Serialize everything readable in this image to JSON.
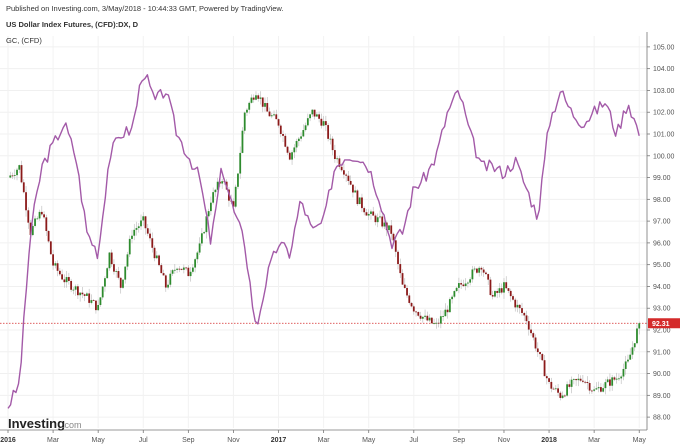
{
  "header": {
    "published": "Published on Investing.com, 3/May/2018 - 10:44:33 GMT, Powered by TradingView.",
    "series1": "US Dollar Index Futures, (CFD):DX, D",
    "series2": "GC, (CFD)"
  },
  "logo": {
    "name": "Investing",
    "suffix": ".com"
  },
  "colors": {
    "up": "#2e8b2e",
    "down": "#8b1a1a",
    "gold": "#a35aa8",
    "priceLine": "#d42a2a",
    "priceBg": "#d42a2a"
  },
  "chart_data": {
    "type": "line",
    "title": "US Dollar Index Futures, (CFD):DX, D",
    "xlabel": "",
    "ylabel": "",
    "ylim": [
      87.5,
      105.5
    ],
    "xlim": [
      0,
      28.3
    ],
    "x_ticks": [
      {
        "label": "2016",
        "pos": 0,
        "bold": true
      },
      {
        "label": "Mar",
        "pos": 2,
        "bold": false
      },
      {
        "label": "May",
        "pos": 4,
        "bold": false
      },
      {
        "label": "Jul",
        "pos": 6,
        "bold": false
      },
      {
        "label": "Sep",
        "pos": 8,
        "bold": false
      },
      {
        "label": "Nov",
        "pos": 10,
        "bold": false
      },
      {
        "label": "2017",
        "pos": 12,
        "bold": true
      },
      {
        "label": "Mar",
        "pos": 14,
        "bold": false
      },
      {
        "label": "May",
        "pos": 16,
        "bold": false
      },
      {
        "label": "Jul",
        "pos": 18,
        "bold": false
      },
      {
        "label": "Sep",
        "pos": 20,
        "bold": false
      },
      {
        "label": "Nov",
        "pos": 22,
        "bold": false
      },
      {
        "label": "2018",
        "pos": 24,
        "bold": true
      },
      {
        "label": "Mar",
        "pos": 26,
        "bold": false
      },
      {
        "label": "May",
        "pos": 28,
        "bold": false
      }
    ],
    "y_ticks": [
      "88.00",
      "89.00",
      "90.00",
      "91.00",
      "92.00",
      "93.00",
      "94.00",
      "95.00",
      "96.00",
      "97.00",
      "98.00",
      "99.00",
      "100.00",
      "101.00",
      "102.00",
      "103.00",
      "104.00",
      "105.00"
    ],
    "last_price": 92.31,
    "last_price_label": "92.31",
    "series": [
      {
        "name": "US Dollar Index Futures, (CFD):DX, D",
        "style": "candlestick",
        "x": [
          0,
          0.5,
          1,
          1.5,
          2,
          2.5,
          3,
          3.5,
          4,
          4.5,
          5,
          5.5,
          6,
          6.5,
          7,
          7.5,
          8,
          8.5,
          9,
          9.5,
          10,
          10.5,
          11,
          11.5,
          12,
          12.5,
          13,
          13.5,
          14,
          14.5,
          15,
          15.5,
          16,
          16.5,
          17,
          17.5,
          18,
          18.5,
          19,
          19.5,
          20,
          20.5,
          21,
          21.5,
          22,
          22.5,
          23,
          23.5,
          24,
          24.5,
          25,
          25.5,
          26,
          26.5,
          27,
          27.5,
          28
        ],
        "values": [
          99.0,
          99.5,
          96.5,
          97.5,
          95.0,
          94.3,
          93.9,
          93.5,
          93.0,
          95.5,
          94.0,
          96.5,
          97.0,
          95.5,
          94.0,
          95.0,
          94.6,
          95.8,
          98.0,
          99.0,
          97.5,
          102.0,
          103.0,
          102.0,
          101.5,
          100.0,
          101.0,
          102.0,
          101.5,
          100.0,
          99.2,
          98.0,
          97.3,
          97.0,
          96.5,
          94.0,
          93.0,
          92.5,
          92.2,
          93.0,
          94.0,
          94.5,
          95.0,
          93.5,
          94.0,
          93.2,
          92.5,
          91.0,
          89.5,
          89.0,
          89.5,
          89.8,
          89.2,
          89.5,
          89.8,
          90.5,
          92.31
        ]
      },
      {
        "name": "GC, (CFD)",
        "style": "line",
        "x": [
          0,
          0.5,
          1,
          1.5,
          2,
          2.5,
          3,
          3.5,
          4,
          4.5,
          5,
          5.5,
          6,
          6.5,
          7,
          7.5,
          8,
          8.5,
          9,
          9.5,
          10,
          10.5,
          11,
          11.5,
          12,
          12.5,
          13,
          13.5,
          14,
          14.5,
          15,
          15.5,
          16,
          16.5,
          17,
          17.5,
          18,
          18.5,
          19,
          19.5,
          20,
          20.5,
          21,
          21.5,
          22,
          22.5,
          23,
          23.5,
          24,
          24.5,
          25,
          25.5,
          26,
          26.5,
          27,
          27.5,
          28
        ],
        "values": [
          88.5,
          89.5,
          96.5,
          99.5,
          100.5,
          101.5,
          100.0,
          96.5,
          95.5,
          100.0,
          101.0,
          101.2,
          104.0,
          102.5,
          103.0,
          101.0,
          100.0,
          99.0,
          96.0,
          99.5,
          97.5,
          96.0,
          92.0,
          94.5,
          96.0,
          95.5,
          98.0,
          96.5,
          97.0,
          99.5,
          100.0,
          100.0,
          99.5,
          98.0,
          96.0,
          96.5,
          98.5,
          99.0,
          100.0,
          102.0,
          103.0,
          101.0,
          99.5,
          99.5,
          99.2,
          99.8,
          98.5,
          97.2,
          101.5,
          103.0,
          102.0,
          101.5,
          102.0,
          102.5,
          101.0,
          102.5,
          101.0
        ]
      }
    ]
  }
}
